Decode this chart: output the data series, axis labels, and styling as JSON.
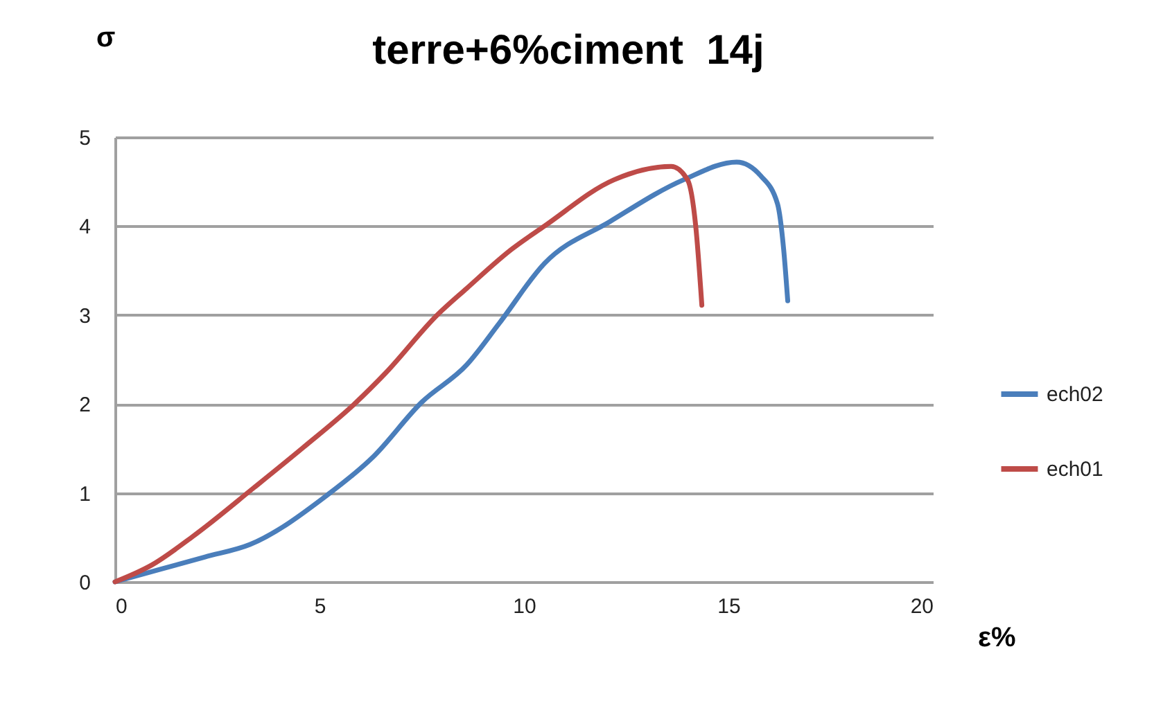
{
  "chart_data": {
    "type": "line",
    "title": "terre+6%ciment  14j",
    "xlabel": "ε%",
    "ylabel": "σ",
    "xlim": [
      0,
      20
    ],
    "ylim": [
      0,
      5
    ],
    "xticks": [
      0,
      5,
      10,
      15,
      20
    ],
    "yticks": [
      0,
      1,
      2,
      3,
      4,
      5
    ],
    "grid": "y",
    "legend": "right",
    "series": [
      {
        "name": "ech02",
        "color": "#4a7ebb",
        "x": [
          0,
          2.2,
          3.3,
          5.2,
          6.3,
          7.5,
          8.6,
          9.4,
          10.5,
          12.1,
          13.9,
          15.2,
          15.8,
          16.2,
          16.35,
          16.45
        ],
        "values": [
          0,
          0.28,
          0.42,
          0.98,
          1.4,
          2.02,
          2.44,
          2.91,
          3.58,
          4.05,
          4.52,
          4.72,
          4.56,
          4.25,
          3.74,
          3.16
        ]
      },
      {
        "name": "ech01",
        "color": "#be4b48",
        "x": [
          0,
          0.9,
          1.9,
          3.4,
          4.6,
          5.9,
          6.6,
          7.9,
          8.6,
          9.7,
          10.5,
          12.2,
          13.6,
          14.0,
          14.2,
          14.35
        ],
        "values": [
          0,
          0.19,
          0.51,
          1.06,
          1.51,
          2.02,
          2.34,
          3.01,
          3.3,
          3.74,
          4.0,
          4.52,
          4.67,
          4.52,
          4.0,
          3.11
        ]
      }
    ]
  }
}
